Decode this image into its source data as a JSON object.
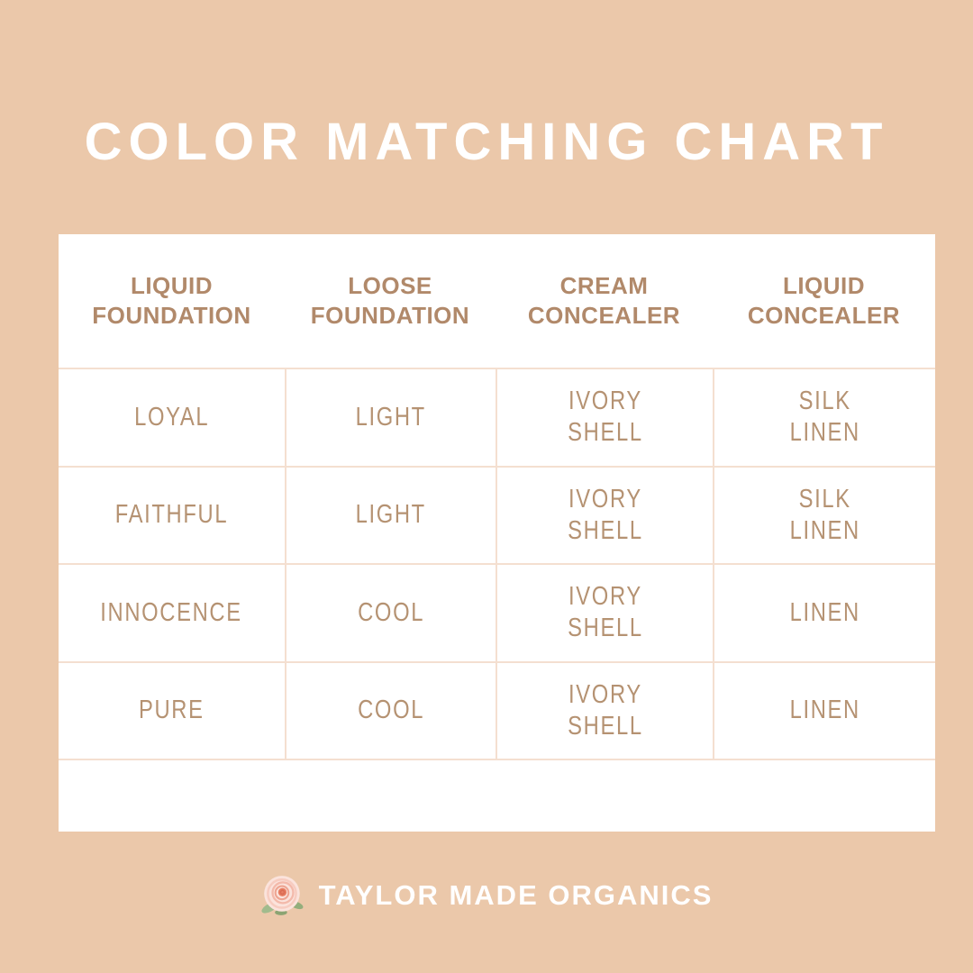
{
  "title": "COLOR MATCHING CHART",
  "chart_data": {
    "type": "table",
    "title": "COLOR MATCHING CHART",
    "columns": [
      "LIQUID\nFOUNDATION",
      "LOOSE\nFOUNDATION",
      "CREAM\nCONCEALER",
      "LIQUID\nCONCEALER"
    ],
    "rows": [
      [
        "LOYAL",
        "LIGHT",
        "IVORY\nSHELL",
        "SILK\nLINEN"
      ],
      [
        "FAITHFUL",
        "LIGHT",
        "IVORY\nSHELL",
        "SILK\nLINEN"
      ],
      [
        "INNOCENCE",
        "COOL",
        "IVORY\nSHELL",
        "LINEN"
      ],
      [
        "PURE",
        "COOL",
        "IVORY\nSHELL",
        "LINEN"
      ]
    ]
  },
  "footer": {
    "brand": "TAYLOR MADE ORGANICS",
    "icon": "rose-icon"
  },
  "colors": {
    "background": "#ebc8aa",
    "card": "#ffffff",
    "header_text": "#b1896a",
    "body_text": "#b59272",
    "grid_line": "#f4dfd0",
    "title_text": "#ffffff",
    "rose_pink": "#f6c9bc",
    "rose_center": "#e77e63",
    "leaf_green": "#9dbb8b"
  }
}
